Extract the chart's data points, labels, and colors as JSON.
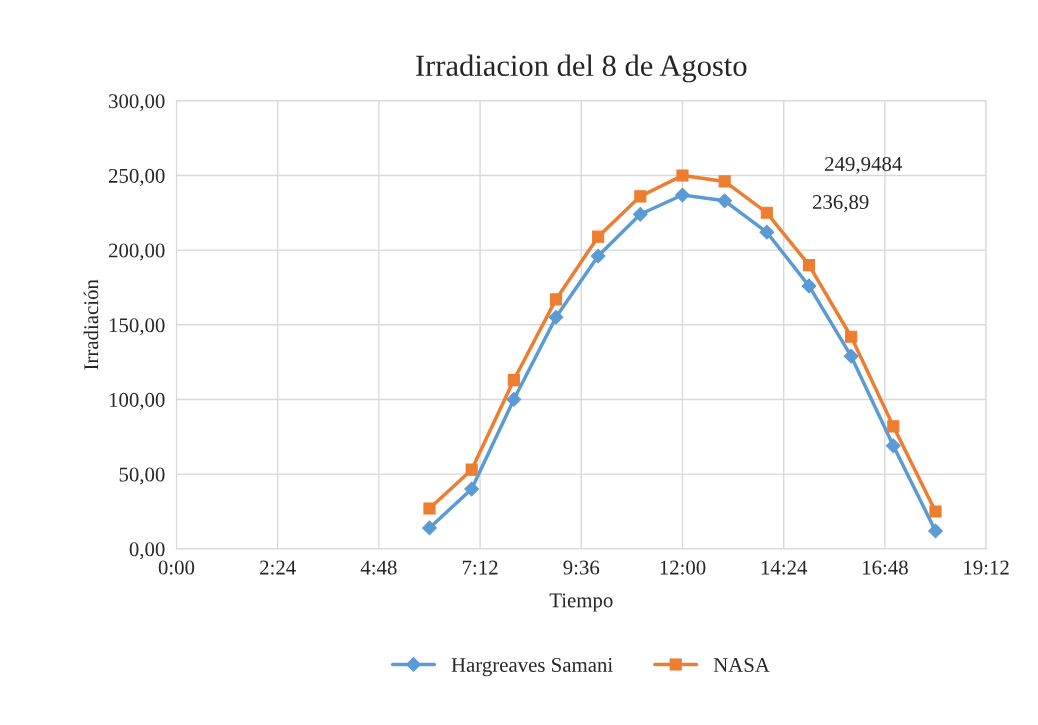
{
  "chart_data": {
    "type": "line",
    "title": "Irradiacion del 8 de Agosto",
    "xlabel": "Tiempo",
    "ylabel": "Irradiación",
    "x": [
      6,
      7,
      8,
      9,
      10,
      11,
      12,
      13,
      14,
      15,
      16,
      17,
      18
    ],
    "series": [
      {
        "name": "Hargreaves Samani",
        "color": "#5b9bd5",
        "marker": "diamond",
        "values": [
          14,
          40,
          100,
          155,
          196,
          224,
          236.89,
          233,
          212,
          176,
          129,
          69,
          12
        ]
      },
      {
        "name": "NASA",
        "color": "#ed7d31",
        "marker": "square",
        "values": [
          27,
          53,
          113,
          167,
          209,
          236,
          249.9484,
          246,
          225,
          190,
          142,
          82,
          25
        ]
      }
    ],
    "annotations": [
      "249,9484",
      "236,89"
    ],
    "xlim": [
      0,
      19.2
    ],
    "xticks": [
      {
        "value": 0,
        "label": "0:00"
      },
      {
        "value": 2.4,
        "label": "2:24"
      },
      {
        "value": 4.8,
        "label": "4:48"
      },
      {
        "value": 7.2,
        "label": "7:12"
      },
      {
        "value": 9.6,
        "label": "9:36"
      },
      {
        "value": 12,
        "label": "12:00"
      },
      {
        "value": 14.4,
        "label": "14:24"
      },
      {
        "value": 16.8,
        "label": "16:48"
      },
      {
        "value": 19.2,
        "label": "19:12"
      }
    ],
    "ylim": [
      0,
      300
    ],
    "yticks": [
      {
        "value": 0,
        "label": "0,00"
      },
      {
        "value": 50,
        "label": "50,00"
      },
      {
        "value": 100,
        "label": "100,00"
      },
      {
        "value": 150,
        "label": "150,00"
      },
      {
        "value": 200,
        "label": "200,00"
      },
      {
        "value": 250,
        "label": "250,00"
      },
      {
        "value": 300,
        "label": "300,00"
      }
    ],
    "grid": true,
    "legend": "bottom",
    "line_style": "solid"
  }
}
